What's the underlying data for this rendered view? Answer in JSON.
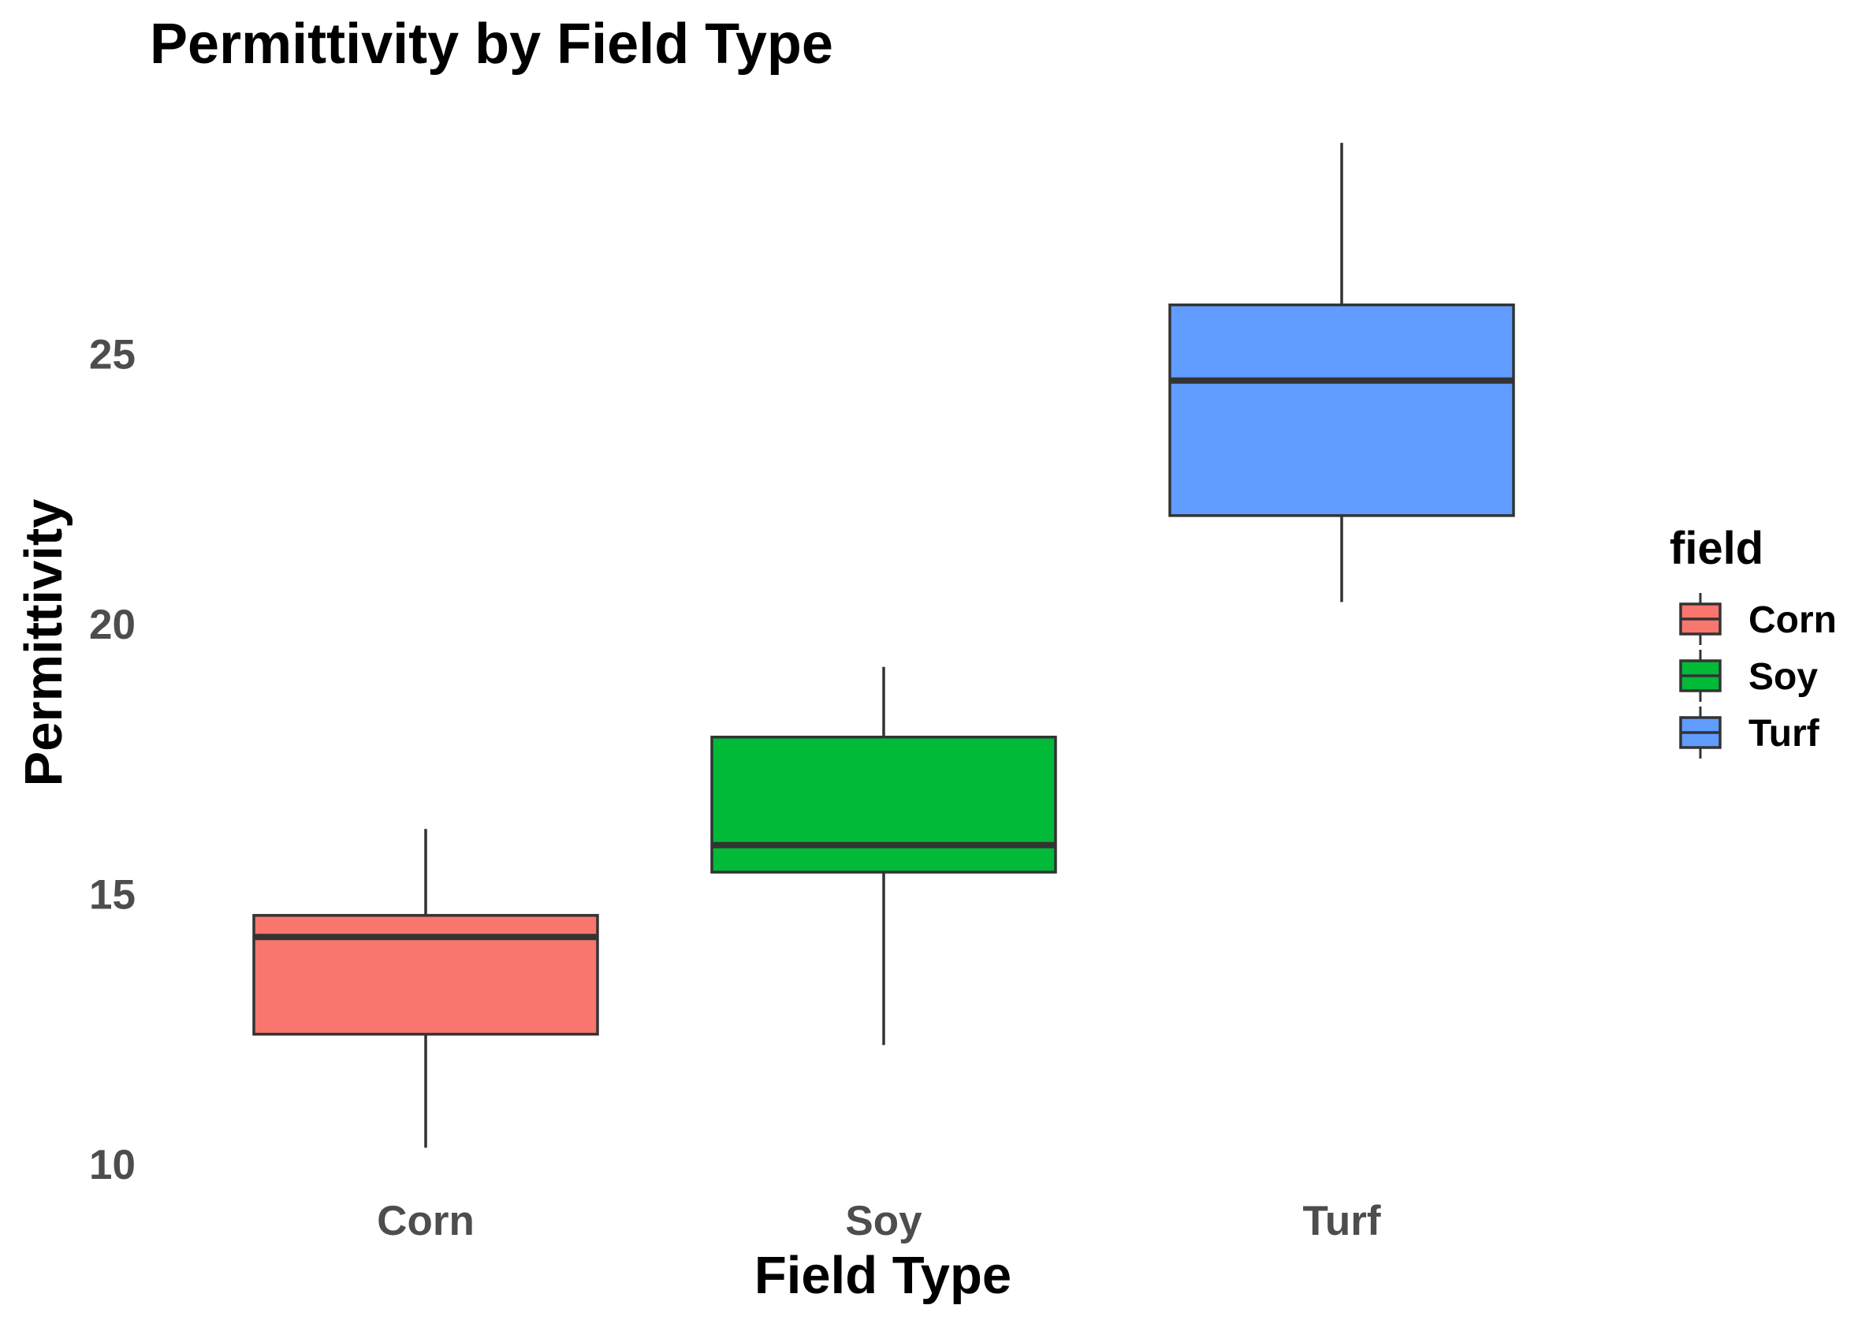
{
  "chart_data": {
    "type": "box",
    "title": "Permittivity by Field Type",
    "xlabel": "Field Type",
    "ylabel": "Permittivity",
    "categories": [
      "Corn",
      "Soy",
      "Turf"
    ],
    "boxes": [
      {
        "category": "Corn",
        "min": 10.3,
        "q1": 12.4,
        "median": 14.2,
        "q3": 14.6,
        "max": 16.2
      },
      {
        "category": "Soy",
        "min": 12.2,
        "q1": 15.4,
        "median": 15.9,
        "q3": 17.9,
        "max": 19.2
      },
      {
        "category": "Turf",
        "min": 20.4,
        "q1": 22.0,
        "median": 24.5,
        "q3": 25.9,
        "max": 28.9
      }
    ],
    "yticks": [
      10,
      15,
      20,
      25
    ],
    "ylim": [
      9.65,
      29.5
    ],
    "grid": false,
    "legend": {
      "title": "field",
      "position": "right",
      "items": [
        {
          "label": "Corn",
          "color": "#F8766D"
        },
        {
          "label": "Soy",
          "color": "#00BA38"
        },
        {
          "label": "Turf",
          "color": "#619CFF"
        }
      ]
    },
    "colors": {
      "Corn": "#F8766D",
      "Soy": "#00BA38",
      "Turf": "#619CFF"
    },
    "outline_color": "#333333",
    "background": "#ffffff"
  }
}
